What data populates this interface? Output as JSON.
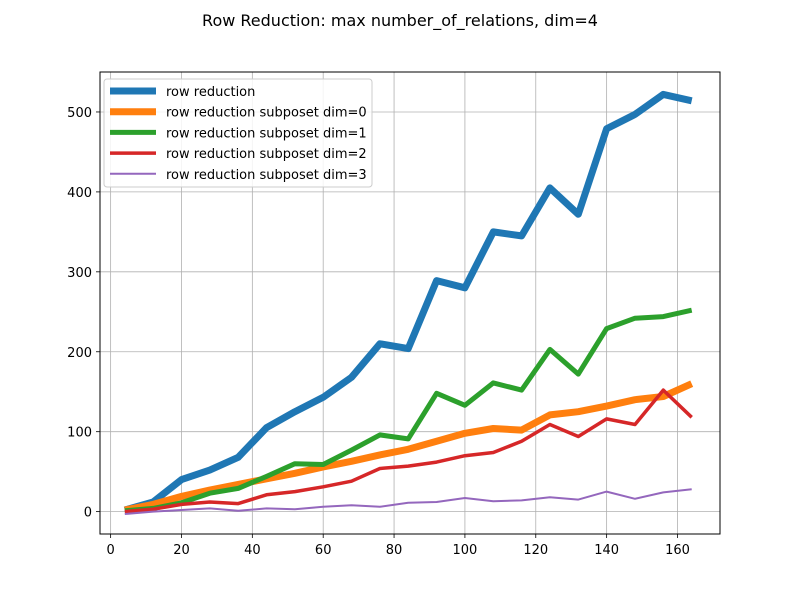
{
  "chart_data": {
    "type": "line",
    "title": "Row Reduction: max number_of_relations, dim=4",
    "xlabel": "",
    "ylabel": "",
    "xlim": [
      -3,
      172
    ],
    "ylim": [
      -28,
      550
    ],
    "xticks": [
      0,
      20,
      40,
      60,
      80,
      100,
      120,
      140,
      160
    ],
    "yticks": [
      0,
      100,
      200,
      300,
      400,
      500
    ],
    "grid": true,
    "legend_position": "upper-left",
    "x": [
      4,
      12,
      20,
      28,
      36,
      44,
      52,
      60,
      68,
      76,
      84,
      92,
      100,
      108,
      116,
      124,
      132,
      140,
      148,
      156,
      164
    ],
    "series": [
      {
        "name": "row reduction",
        "color": "#1f77b4",
        "linewidth": 7,
        "values": [
          2,
          12,
          40,
          52,
          68,
          105,
          125,
          143,
          168,
          210,
          204,
          289,
          280,
          350,
          345,
          405,
          372,
          479,
          497,
          522,
          514
        ]
      },
      {
        "name": "row reduction subposet dim=0",
        "color": "#ff7f0e",
        "linewidth": 7,
        "values": [
          2,
          9,
          19,
          27,
          34,
          41,
          48,
          56,
          63,
          71,
          78,
          88,
          98,
          104,
          102,
          121,
          125,
          132,
          140,
          144,
          160
        ]
      },
      {
        "name": "row reduction subposet dim=1",
        "color": "#2ca02c",
        "linewidth": 5,
        "values": [
          1,
          4,
          11,
          23,
          29,
          44,
          60,
          59,
          77,
          96,
          91,
          148,
          133,
          161,
          152,
          203,
          172,
          229,
          242,
          244,
          252
        ]
      },
      {
        "name": "row reduction subposet dim=2",
        "color": "#d62728",
        "linewidth": 3.5,
        "values": [
          0,
          3,
          9,
          12,
          10,
          21,
          25,
          31,
          38,
          54,
          57,
          62,
          70,
          74,
          88,
          109,
          94,
          116,
          109,
          152,
          118
        ]
      },
      {
        "name": "row reduction subposet dim=3",
        "color": "#9467bd",
        "linewidth": 2,
        "values": [
          -3,
          0,
          2,
          4,
          1,
          4,
          3,
          6,
          8,
          6,
          11,
          12,
          17,
          13,
          14,
          18,
          15,
          25,
          16,
          24,
          28
        ]
      }
    ]
  }
}
